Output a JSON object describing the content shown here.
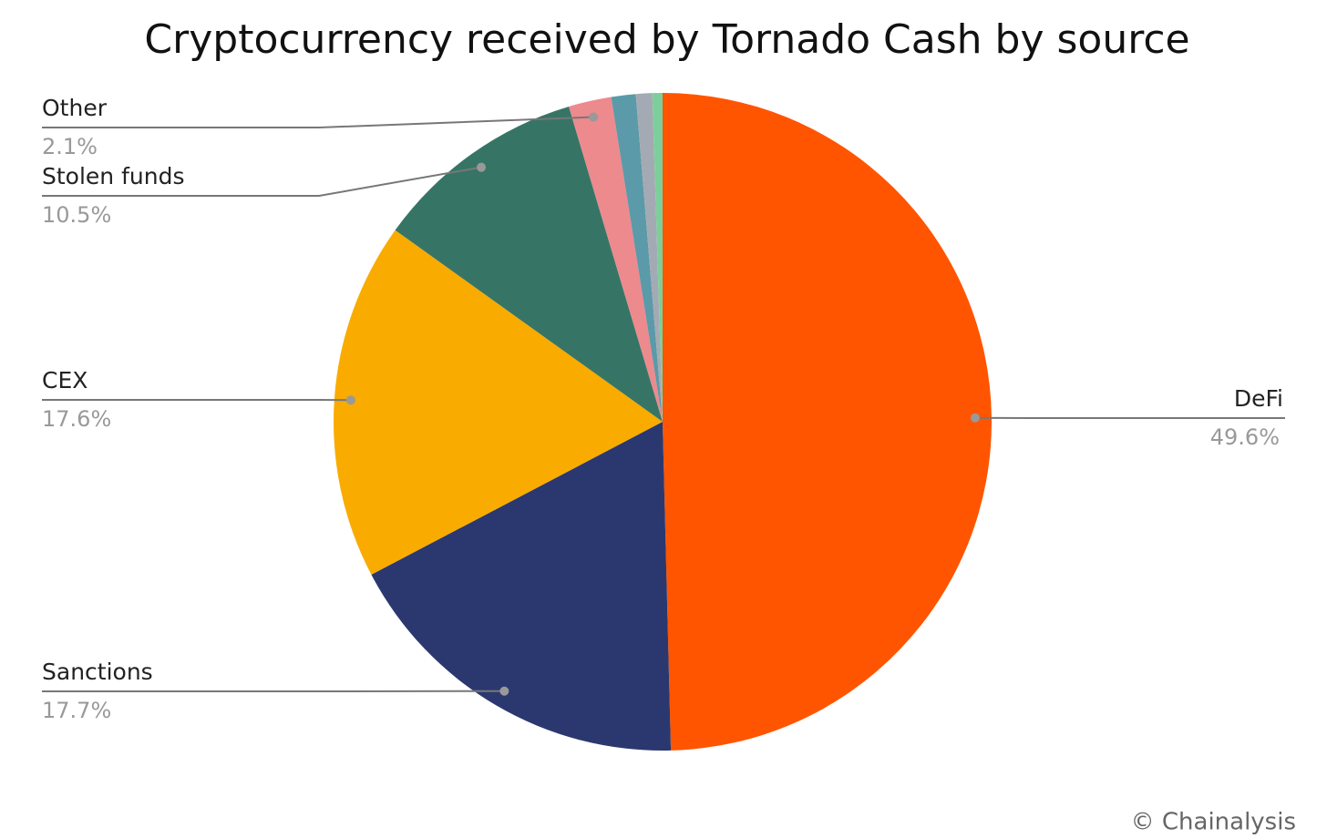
{
  "chart_data": {
    "type": "pie",
    "title": "Cryptocurrency received by Tornado Cash by source",
    "categories": [
      "DeFi",
      "Sanctions",
      "CEX",
      "Stolen funds",
      "Other",
      null,
      null,
      null
    ],
    "values": [
      49.6,
      17.7,
      17.6,
      10.5,
      2.1,
      1.2,
      0.8,
      0.5
    ],
    "value_labels": [
      "49.6%",
      "17.7%",
      "17.6%",
      "10.5%",
      "2.1%",
      null,
      null,
      null
    ],
    "colors": [
      "#ff5500",
      "#2b3870",
      "#f9ab00",
      "#367566",
      "#ec8a8e",
      "#5b9aa8",
      "#a4aab3",
      "#7ccf9a"
    ],
    "source": "© Chainalysis"
  }
}
